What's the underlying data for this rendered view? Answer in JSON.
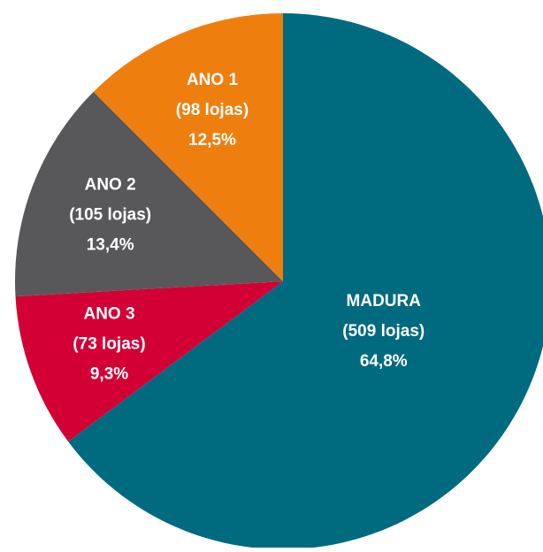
{
  "chart_data": {
    "type": "pie",
    "categories": [
      "MADURA",
      "ANO 3",
      "ANO 2",
      "ANO 1"
    ],
    "values": [
      64.8,
      9.3,
      13.4,
      12.5
    ],
    "value_labels": [
      "64,8%",
      "9,3%",
      "13,4%",
      "12,5%"
    ],
    "counts": [
      509,
      73,
      105,
      98
    ],
    "count_labels": [
      "(509 lojas)",
      "(73 lojas)",
      "(105 lojas)",
      "(98 lojas)"
    ],
    "colors": [
      "#006a7e",
      "#d30035",
      "#58585a",
      "#ee7f0f"
    ]
  }
}
